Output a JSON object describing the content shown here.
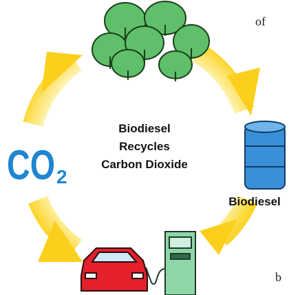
{
  "center_text": [
    "Biodiesel",
    "Recycles",
    "Carbon Dioxide"
  ],
  "co2": {
    "main": "CO",
    "subscript": "2"
  },
  "barrel_label": "Biodiesel",
  "margin_text": [
    "of",
    "b"
  ]
}
